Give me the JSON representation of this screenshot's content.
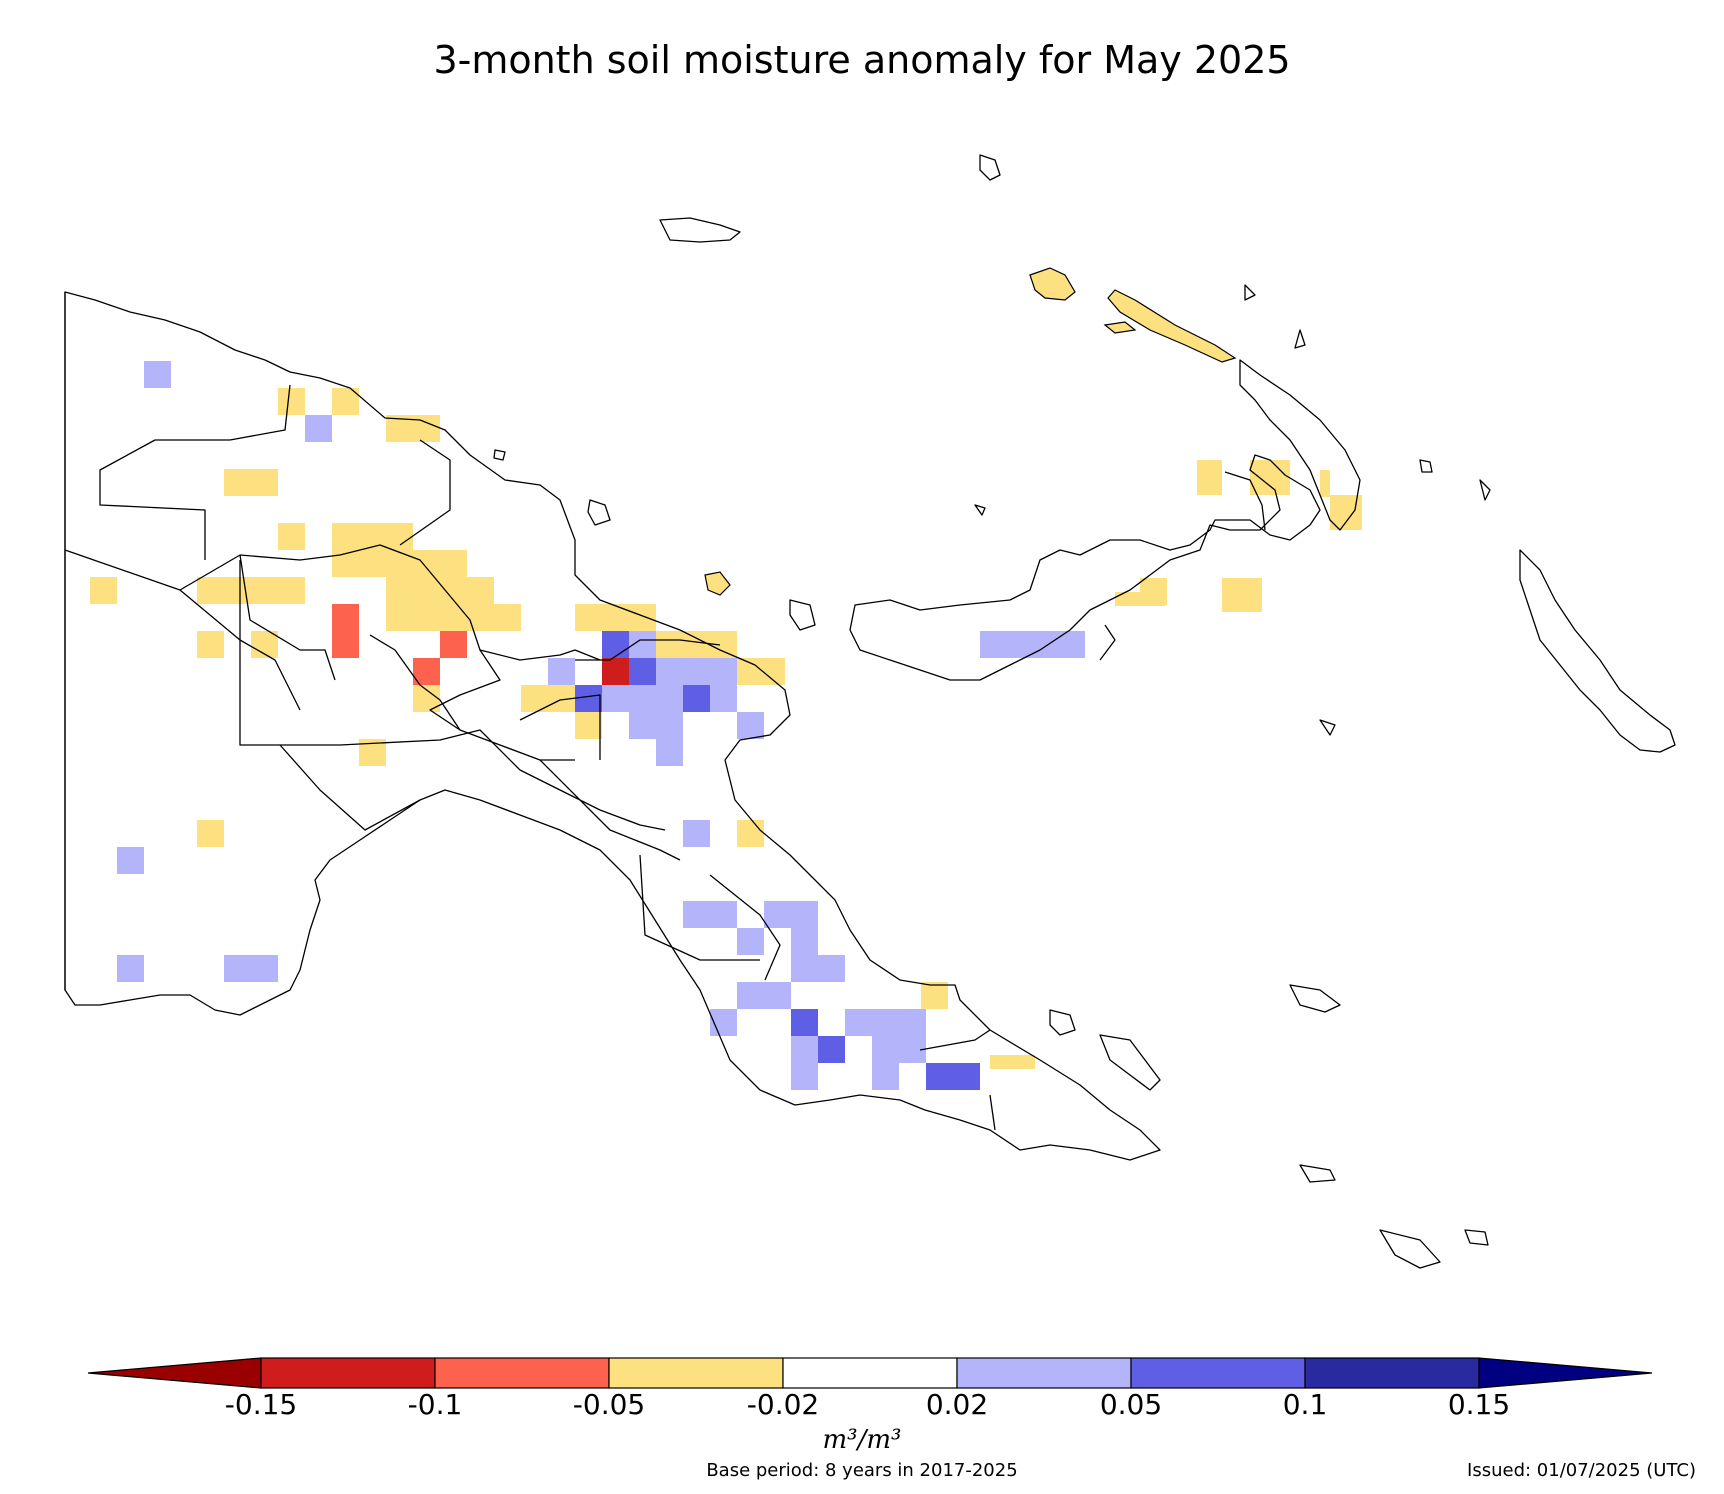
{
  "title": "3-month soil moisture anomaly for May 2025",
  "colorbar": {
    "ticks": [
      "-0.15",
      "-0.1",
      "-0.05",
      "-0.02",
      "0.02",
      "0.05",
      "0.1",
      "0.15"
    ],
    "colors": [
      "#9b0000",
      "#cf1c1c",
      "#fd624e",
      "#fde080",
      "#ffffff",
      "#b4b4fa",
      "#5f5fe6",
      "#2a2aa0",
      "#000080"
    ],
    "units": "m³/m³"
  },
  "footer": {
    "base_period": "Base period: 8 years in 2017-2025",
    "issued": "Issued: 01/07/2025 (UTC)"
  },
  "legend_classes": [
    {
      "label": "< -0.15",
      "color": "#9b0000"
    },
    {
      "label": "-0.15 to -0.1",
      "color": "#cf1c1c"
    },
    {
      "label": "-0.1 to -0.05",
      "color": "#fd624e"
    },
    {
      "label": "-0.05 to -0.02",
      "color": "#fde080"
    },
    {
      "label": "-0.02 to 0.02",
      "color": "#ffffff"
    },
    {
      "label": "0.02 to 0.05",
      "color": "#b4b4fa"
    },
    {
      "label": "0.05 to 0.1",
      "color": "#5f5fe6"
    },
    {
      "label": "0.1 to 0.15",
      "color": "#2a2aa0"
    },
    {
      "label": "> 0.15",
      "color": "#000080"
    }
  ]
}
